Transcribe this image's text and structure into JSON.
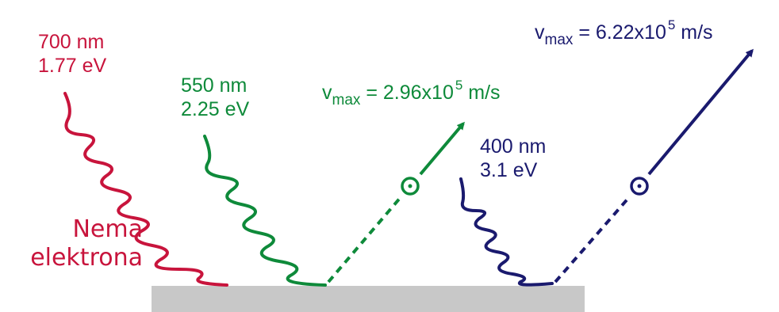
{
  "colors": {
    "red": "#c8143c",
    "green": "#0e8a3a",
    "navy": "#1a1a6e",
    "plate": "#c8c8c8"
  },
  "photons": [
    {
      "wavelength": "700 nm",
      "energy": "1.77 eV"
    },
    {
      "wavelength": "550 nm",
      "energy": "2.25 eV"
    },
    {
      "wavelength": "400 nm",
      "energy": "3.1 eV"
    }
  ],
  "no_electrons": {
    "line1": "Nema",
    "line2": "elektrona"
  },
  "electrons": [
    {
      "v": "v",
      "sub": "max",
      "eq": " = 2.96x10",
      "exp": "5",
      "unit": " m/s"
    },
    {
      "v": "v",
      "sub": "max",
      "eq": " = 6.22x10",
      "exp": "5",
      "unit": " m/s"
    }
  ]
}
